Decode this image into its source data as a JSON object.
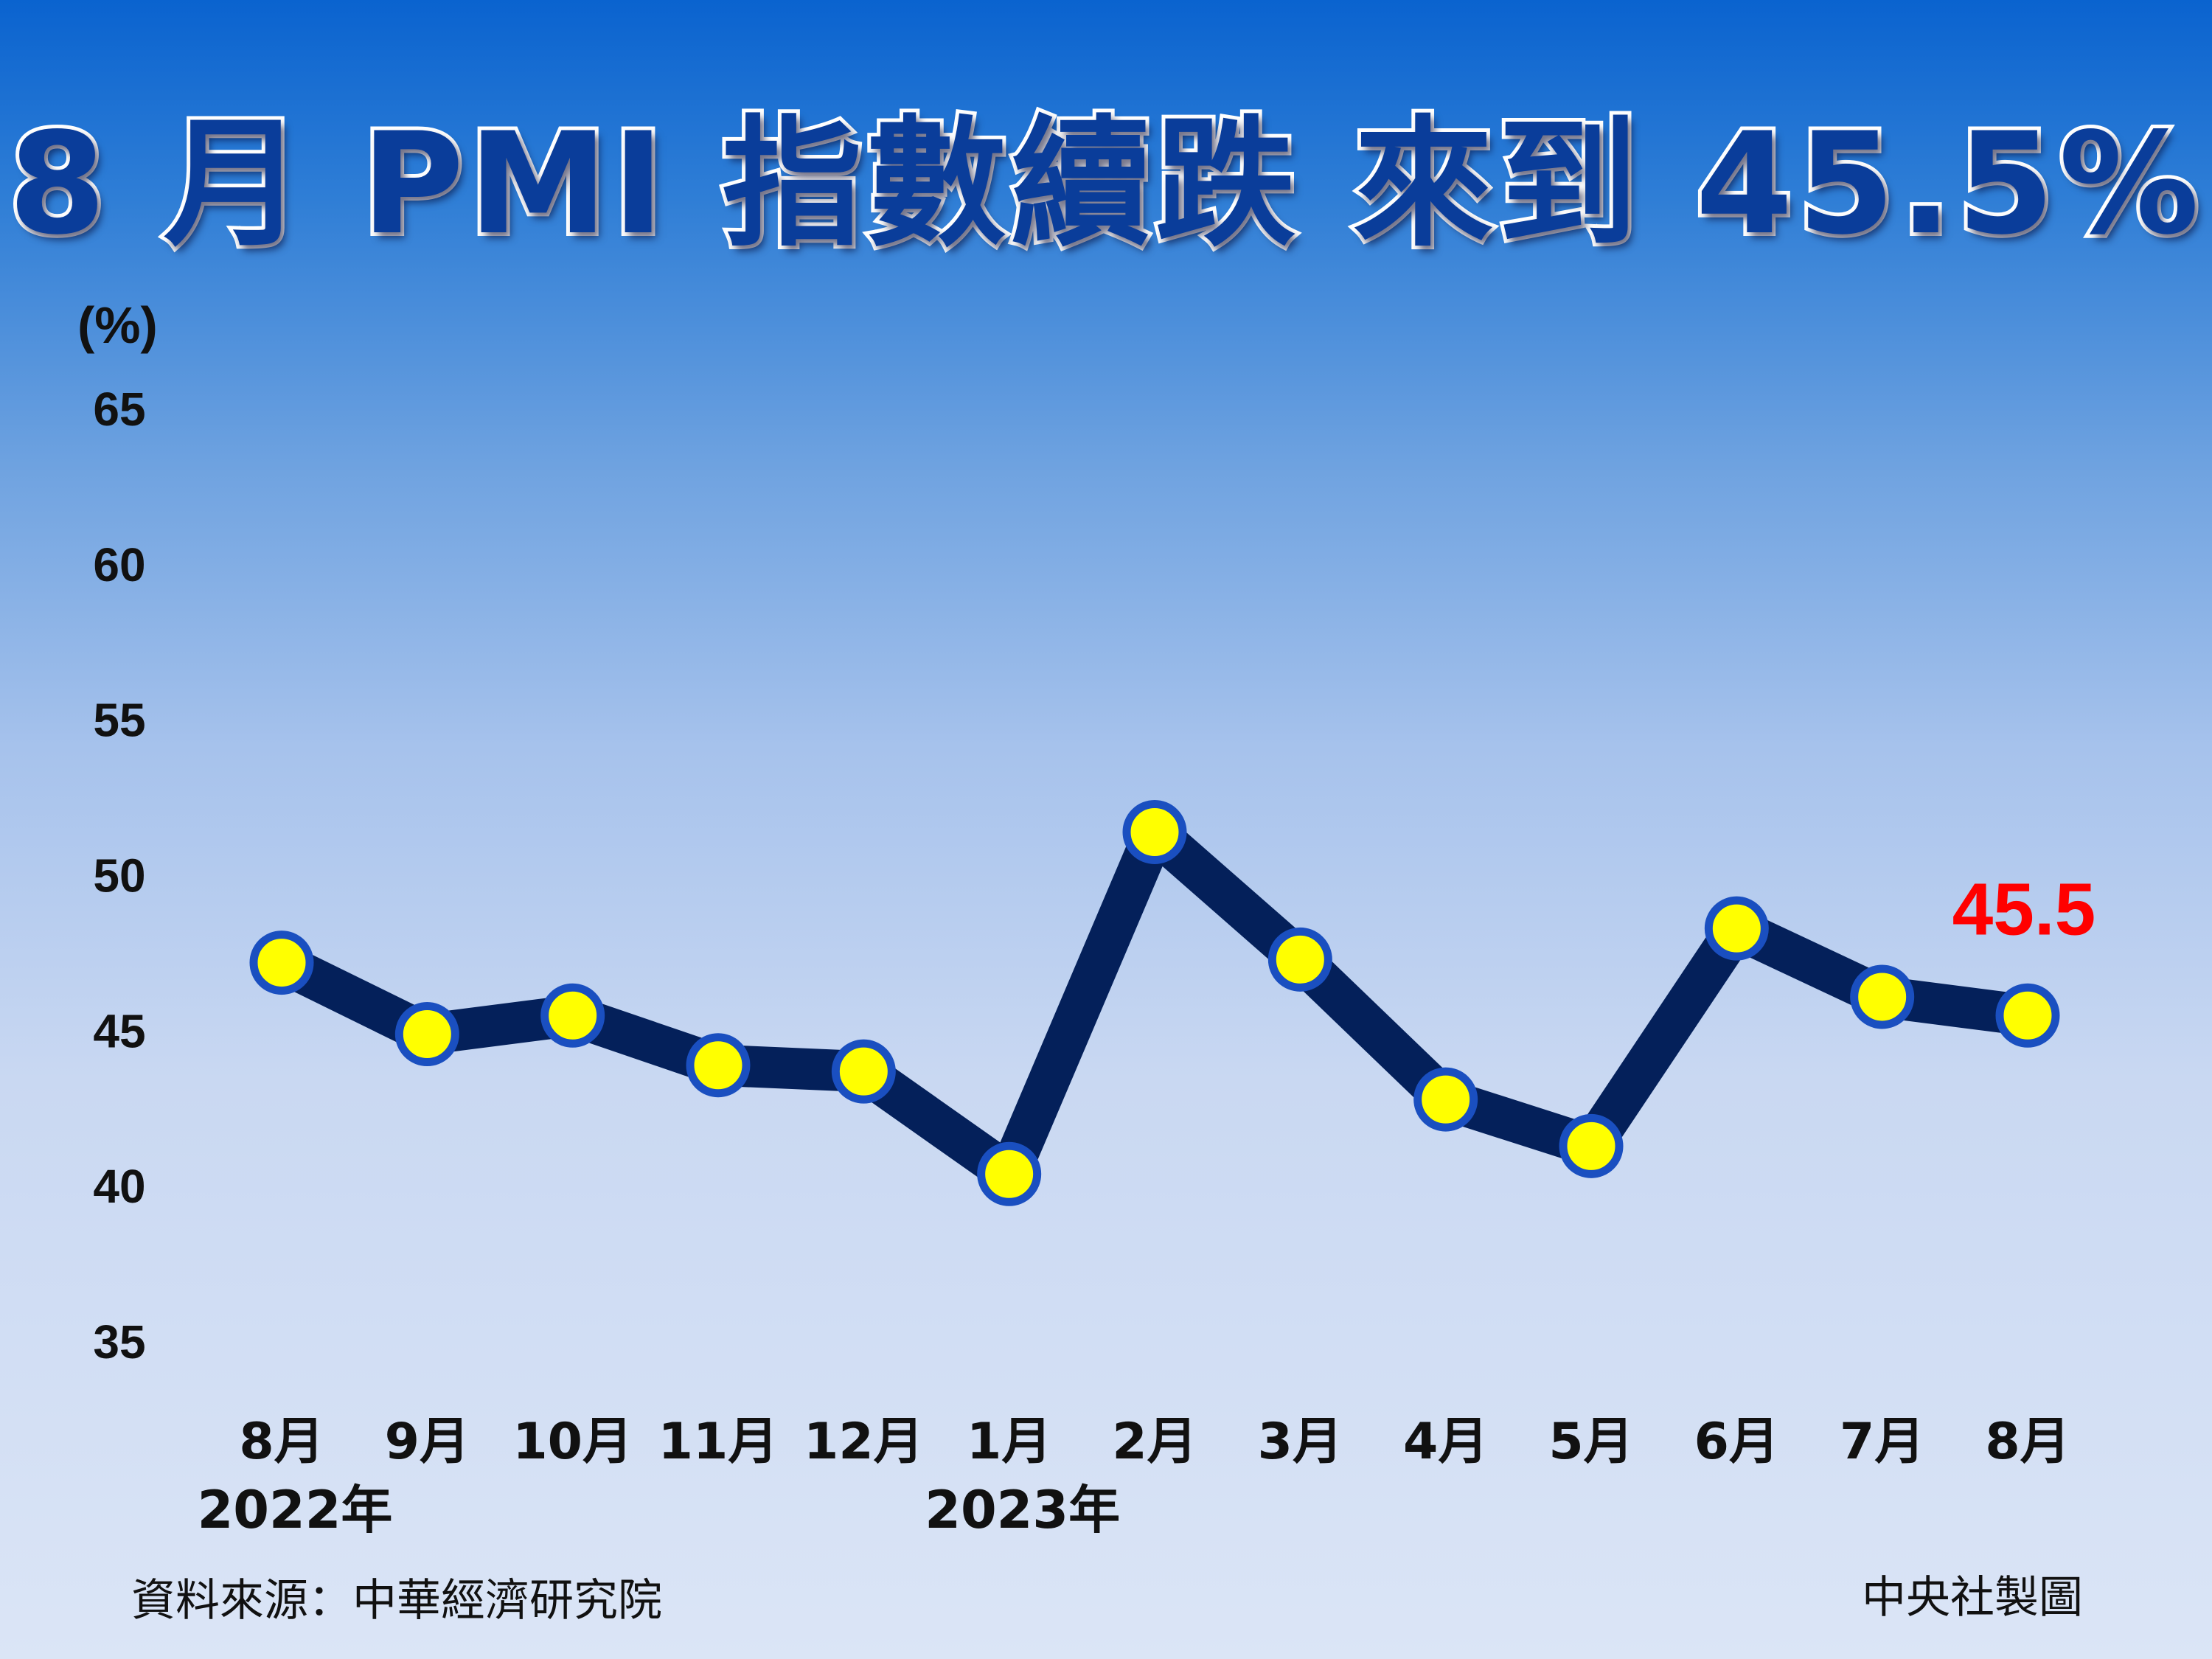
{
  "chart_data": {
    "type": "line",
    "title": "8 月 PMI 指數續跌 來到 45.5%",
    "ylabel": "(%)",
    "xlabel": "",
    "categories": [
      "8月",
      "9月",
      "10月",
      "11月",
      "12月",
      "1月",
      "2月",
      "3月",
      "4月",
      "5月",
      "6月",
      "7月",
      "8月"
    ],
    "year_labels": [
      {
        "text": "2022年",
        "category_index": 0
      },
      {
        "text": "2023年",
        "category_index": 5
      }
    ],
    "series": [
      {
        "values": [
          47.2,
          44.9,
          45.5,
          43.9,
          43.7,
          40.4,
          51.4,
          47.3,
          42.8,
          41.3,
          48.3,
          46.1,
          45.5
        ]
      }
    ],
    "ylim": [
      35,
      65
    ],
    "yticks": [
      65,
      60,
      55,
      50,
      45,
      40,
      35
    ],
    "grid": false,
    "annotation": {
      "text": "45.5",
      "category_index": 12,
      "color": "#ff0000"
    },
    "colors": {
      "line": "#04205a",
      "marker_fill": "#ffff00",
      "marker_stroke": "#1a4fc0"
    }
  },
  "footer": {
    "source": "資料來源：中華經濟研究院",
    "credit": "中央社製圖"
  }
}
